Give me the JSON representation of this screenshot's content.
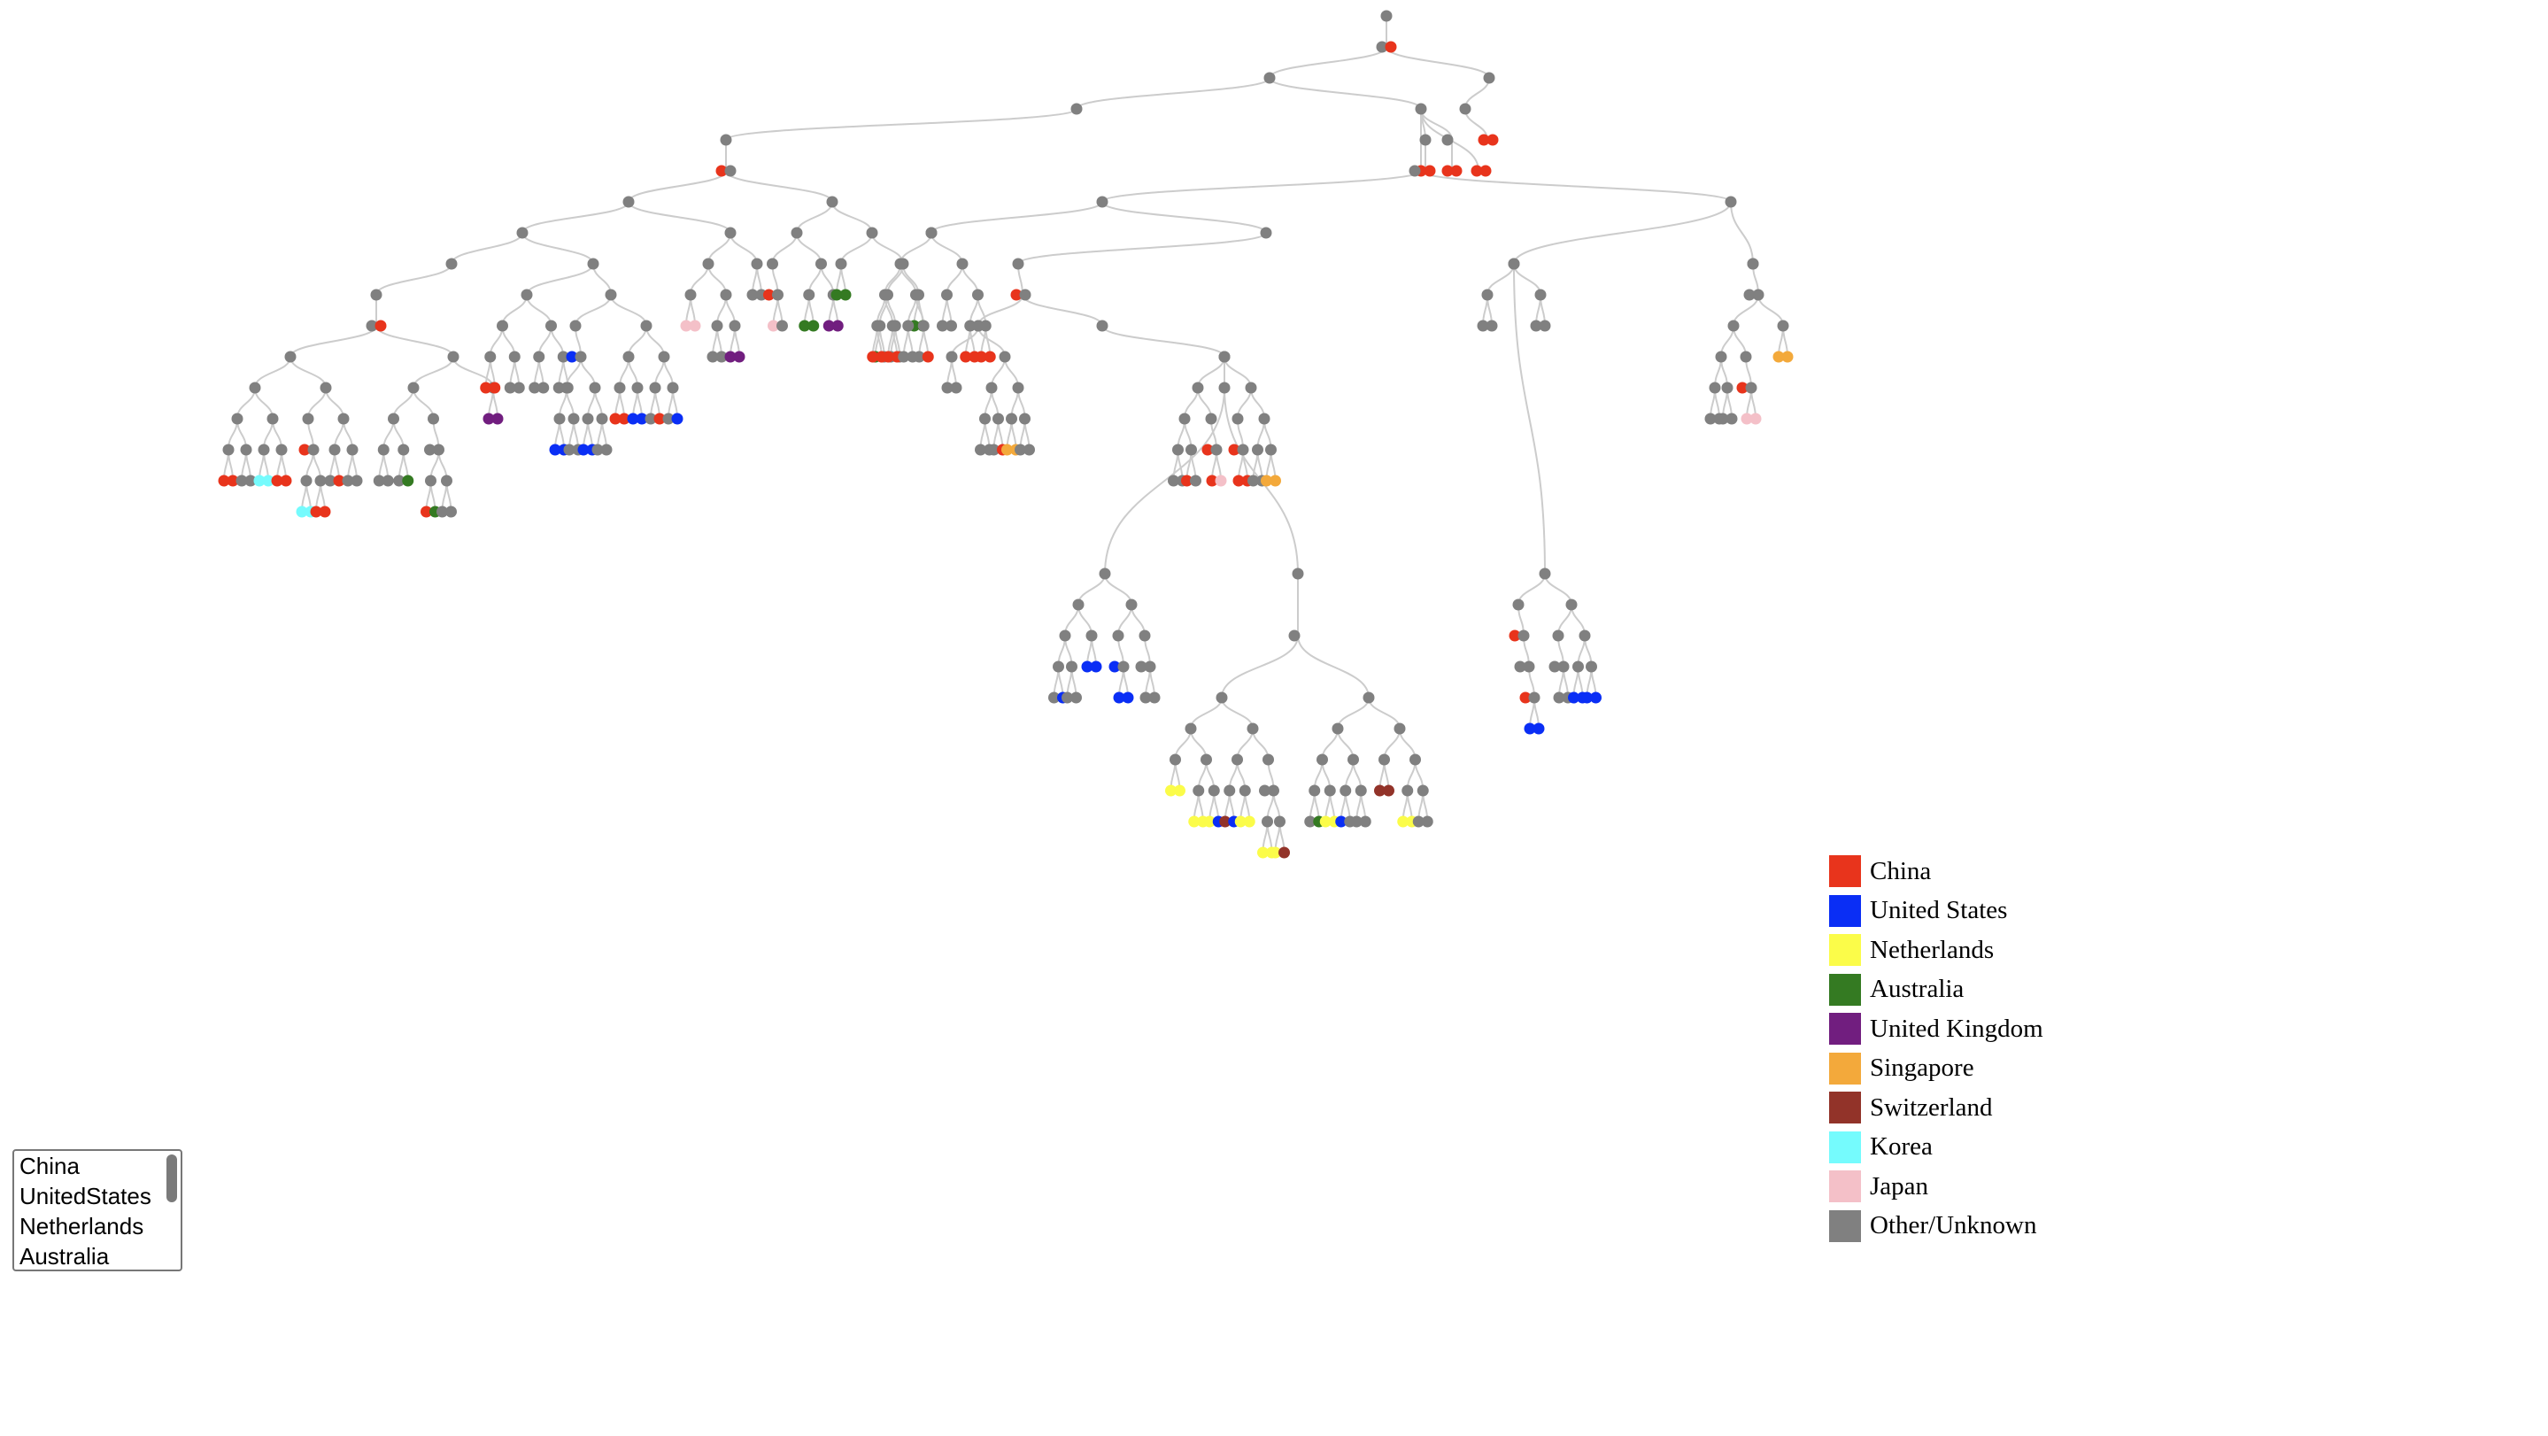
{
  "legend": {
    "items": [
      {
        "label": "China",
        "color": "#e8341c"
      },
      {
        "label": "United States",
        "color": "#0a2ef5"
      },
      {
        "label": "Netherlands",
        "color": "#fbfc49"
      },
      {
        "label": "Australia",
        "color": "#347a22"
      },
      {
        "label": "United Kingdom",
        "color": "#711e7f"
      },
      {
        "label": "Singapore",
        "color": "#f3a93b"
      },
      {
        "label": "Switzerland",
        "color": "#923329"
      },
      {
        "label": "Korea",
        "color": "#75fbfd"
      },
      {
        "label": "Japan",
        "color": "#f4c0c8"
      },
      {
        "label": "Other/Unknown",
        "color": "#808080"
      }
    ]
  },
  "country_select": {
    "options": [
      "China",
      "UnitedStates",
      "Netherlands",
      "Australia"
    ]
  },
  "tree": {
    "link_color": "#cccccc",
    "node_color_default": "#808080"
  }
}
